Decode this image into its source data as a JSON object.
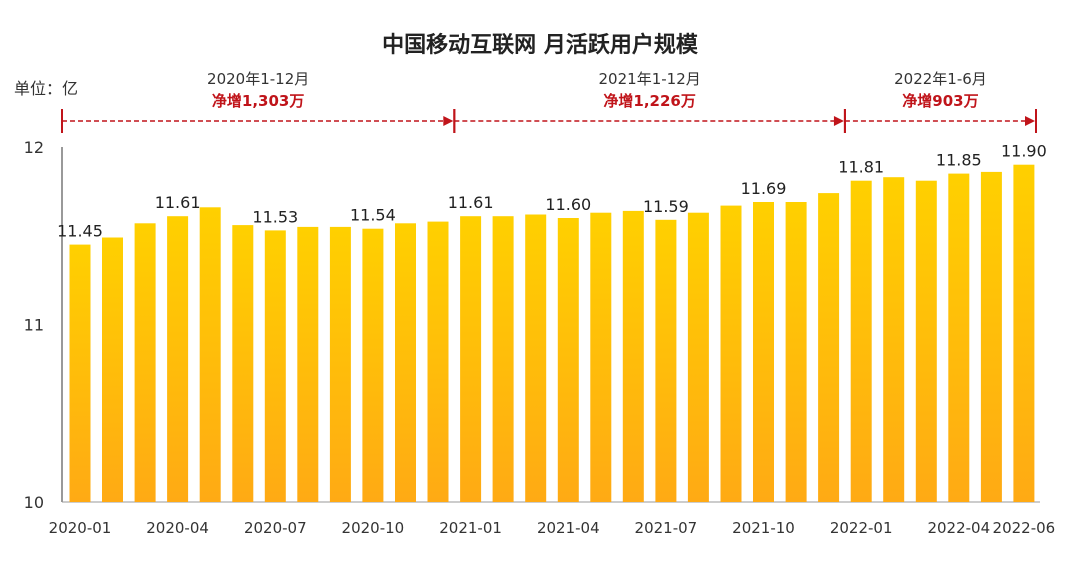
{
  "chart_data": {
    "type": "bar",
    "title": "中国移动互联网 月活跃用户规模",
    "unit_label": "单位：亿",
    "ylim": [
      10,
      12
    ],
    "yticks": [
      "10",
      "11",
      "12"
    ],
    "categories": [
      "2020-01",
      "2020-02",
      "2020-03",
      "2020-04",
      "2020-05",
      "2020-06",
      "2020-07",
      "2020-08",
      "2020-09",
      "2020-10",
      "2020-11",
      "2020-12",
      "2021-01",
      "2021-02",
      "2021-03",
      "2021-04",
      "2021-05",
      "2021-06",
      "2021-07",
      "2021-08",
      "2021-09",
      "2021-10",
      "2021-11",
      "2021-12",
      "2022-01",
      "2022-02",
      "2022-03",
      "2022-04",
      "2022-05",
      "2022-06"
    ],
    "values": [
      11.45,
      11.49,
      11.57,
      11.61,
      11.66,
      11.56,
      11.53,
      11.55,
      11.55,
      11.54,
      11.57,
      11.58,
      11.61,
      11.61,
      11.62,
      11.6,
      11.63,
      11.64,
      11.59,
      11.63,
      11.67,
      11.69,
      11.69,
      11.74,
      11.81,
      11.83,
      11.81,
      11.85,
      11.86,
      11.9
    ],
    "data_labels": [
      {
        "index": 0,
        "text": "11.45"
      },
      {
        "index": 3,
        "text": "11.61"
      },
      {
        "index": 6,
        "text": "11.53"
      },
      {
        "index": 9,
        "text": "11.54"
      },
      {
        "index": 12,
        "text": "11.61"
      },
      {
        "index": 15,
        "text": "11.60"
      },
      {
        "index": 18,
        "text": "11.59"
      },
      {
        "index": 21,
        "text": "11.69"
      },
      {
        "index": 24,
        "text": "11.81"
      },
      {
        "index": 27,
        "text": "11.85"
      },
      {
        "index": 29,
        "text": "11.90"
      }
    ],
    "xtick_labels": [
      {
        "index": 0,
        "text": "2020-01"
      },
      {
        "index": 3,
        "text": "2020-04"
      },
      {
        "index": 6,
        "text": "2020-07"
      },
      {
        "index": 9,
        "text": "2020-10"
      },
      {
        "index": 12,
        "text": "2021-01"
      },
      {
        "index": 15,
        "text": "2021-04"
      },
      {
        "index": 18,
        "text": "2021-07"
      },
      {
        "index": 21,
        "text": "2021-10"
      },
      {
        "index": 24,
        "text": "2022-01"
      },
      {
        "index": 27,
        "text": "2022-04"
      },
      {
        "index": 29,
        "text": "2022-06"
      }
    ],
    "annotations": [
      {
        "period": "2020年1-12月",
        "increase": "净增1,303万",
        "from": 0,
        "to": 12
      },
      {
        "period": "2021年1-12月",
        "increase": "净增1,226万",
        "from": 12,
        "to": 24
      },
      {
        "period": "2022年1-6月",
        "increase": "净增903万",
        "from": 24,
        "to": 29
      }
    ],
    "colors": {
      "bar_top": "#ffd000",
      "bar_bottom": "#ffaa14",
      "annotation": "#c0141a",
      "axis": "#333333"
    }
  }
}
